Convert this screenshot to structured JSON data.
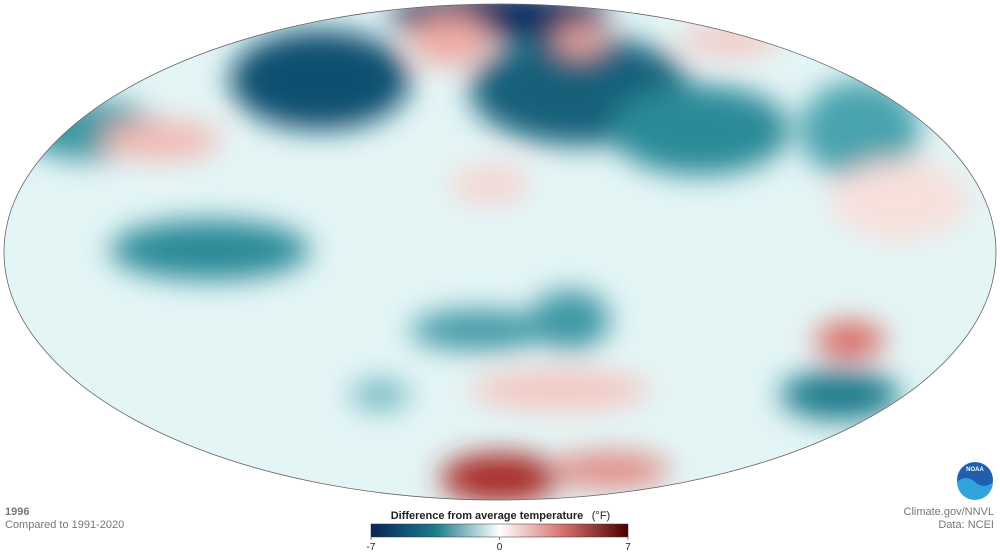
{
  "header": {
    "year": "1996",
    "baseline": "Compared to 1991-2020"
  },
  "colorbar": {
    "title": "Difference from average temperature",
    "unit": "(°F)",
    "min": -7,
    "max": 7,
    "ticks": [
      -7,
      0,
      7
    ]
  },
  "credits": {
    "source": "Climate.gov/NNVL",
    "data": "Data: NCEI",
    "logo": "NOAA"
  }
}
